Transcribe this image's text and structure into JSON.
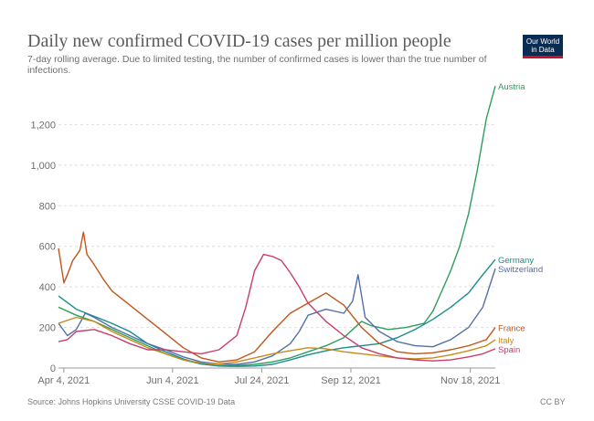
{
  "chart_data": {
    "type": "line",
    "title": "Daily new confirmed COVID-19 cases per million people",
    "subtitle": "7-day rolling average. Due to limited testing, the number of confirmed cases is lower than the true number of infections.",
    "ylim": [
      0,
      1400
    ],
    "xlim": [
      0,
      245
    ],
    "y_ticks": [
      0,
      200,
      400,
      600,
      800,
      1000,
      1200
    ],
    "y_tick_labels": [
      "0",
      "200",
      "400",
      "600",
      "800",
      "1,000",
      "1,200"
    ],
    "x_ticks": [
      {
        "x": 3,
        "label": "Apr 4, 2021"
      },
      {
        "x": 64,
        "label": "Jun 4, 2021"
      },
      {
        "x": 114,
        "label": "Jul 24, 2021"
      },
      {
        "x": 164,
        "label": "Sep 12, 2021"
      },
      {
        "x": 231,
        "label": "Nov 18, 2021"
      }
    ],
    "series": [
      {
        "name": "Austria",
        "color": "#2e9e5b",
        "points": [
          [
            0,
            300
          ],
          [
            10,
            260
          ],
          [
            20,
            230
          ],
          [
            30,
            190
          ],
          [
            40,
            150
          ],
          [
            50,
            110
          ],
          [
            60,
            70
          ],
          [
            70,
            40
          ],
          [
            80,
            20
          ],
          [
            90,
            12
          ],
          [
            100,
            12
          ],
          [
            110,
            18
          ],
          [
            120,
            30
          ],
          [
            130,
            50
          ],
          [
            140,
            80
          ],
          [
            150,
            110
          ],
          [
            160,
            150
          ],
          [
            165,
            190
          ],
          [
            170,
            230
          ],
          [
            175,
            210
          ],
          [
            185,
            190
          ],
          [
            195,
            200
          ],
          [
            205,
            220
          ],
          [
            210,
            280
          ],
          [
            215,
            380
          ],
          [
            220,
            480
          ],
          [
            225,
            600
          ],
          [
            230,
            760
          ],
          [
            235,
            980
          ],
          [
            240,
            1230
          ],
          [
            245,
            1390
          ]
        ]
      },
      {
        "name": "Germany",
        "color": "#1a8c8c",
        "points": [
          [
            0,
            355
          ],
          [
            10,
            290
          ],
          [
            20,
            255
          ],
          [
            30,
            220
          ],
          [
            40,
            180
          ],
          [
            50,
            120
          ],
          [
            60,
            80
          ],
          [
            70,
            45
          ],
          [
            80,
            20
          ],
          [
            90,
            10
          ],
          [
            100,
            8
          ],
          [
            110,
            10
          ],
          [
            120,
            18
          ],
          [
            130,
            40
          ],
          [
            140,
            65
          ],
          [
            150,
            85
          ],
          [
            160,
            100
          ],
          [
            170,
            110
          ],
          [
            180,
            120
          ],
          [
            190,
            150
          ],
          [
            200,
            190
          ],
          [
            210,
            240
          ],
          [
            220,
            300
          ],
          [
            230,
            370
          ],
          [
            238,
            460
          ],
          [
            245,
            535
          ]
        ]
      },
      {
        "name": "Switzerland",
        "color": "#5470a8",
        "points": [
          [
            0,
            220
          ],
          [
            5,
            160
          ],
          [
            10,
            190
          ],
          [
            15,
            270
          ],
          [
            20,
            250
          ],
          [
            30,
            200
          ],
          [
            40,
            160
          ],
          [
            50,
            120
          ],
          [
            60,
            90
          ],
          [
            70,
            55
          ],
          [
            80,
            30
          ],
          [
            90,
            20
          ],
          [
            100,
            18
          ],
          [
            110,
            30
          ],
          [
            120,
            60
          ],
          [
            130,
            120
          ],
          [
            135,
            180
          ],
          [
            140,
            260
          ],
          [
            150,
            290
          ],
          [
            160,
            270
          ],
          [
            165,
            330
          ],
          [
            168,
            460
          ],
          [
            172,
            250
          ],
          [
            180,
            180
          ],
          [
            190,
            130
          ],
          [
            200,
            110
          ],
          [
            210,
            105
          ],
          [
            220,
            140
          ],
          [
            230,
            200
          ],
          [
            238,
            300
          ],
          [
            245,
            490
          ]
        ]
      },
      {
        "name": "France",
        "color": "#c0561a",
        "points": [
          [
            0,
            590
          ],
          [
            3,
            420
          ],
          [
            5,
            460
          ],
          [
            8,
            530
          ],
          [
            12,
            580
          ],
          [
            14,
            670
          ],
          [
            16,
            560
          ],
          [
            20,
            510
          ],
          [
            25,
            440
          ],
          [
            30,
            380
          ],
          [
            40,
            310
          ],
          [
            50,
            240
          ],
          [
            60,
            170
          ],
          [
            70,
            100
          ],
          [
            80,
            50
          ],
          [
            90,
            30
          ],
          [
            100,
            40
          ],
          [
            110,
            80
          ],
          [
            120,
            180
          ],
          [
            130,
            270
          ],
          [
            140,
            320
          ],
          [
            150,
            370
          ],
          [
            160,
            310
          ],
          [
            170,
            200
          ],
          [
            180,
            120
          ],
          [
            190,
            80
          ],
          [
            200,
            70
          ],
          [
            210,
            75
          ],
          [
            220,
            90
          ],
          [
            230,
            110
          ],
          [
            240,
            140
          ],
          [
            245,
            200
          ]
        ]
      },
      {
        "name": "Italy",
        "color": "#c98a1a",
        "points": [
          [
            0,
            220
          ],
          [
            10,
            250
          ],
          [
            20,
            230
          ],
          [
            30,
            180
          ],
          [
            40,
            140
          ],
          [
            50,
            100
          ],
          [
            60,
            70
          ],
          [
            70,
            40
          ],
          [
            80,
            25
          ],
          [
            90,
            20
          ],
          [
            100,
            30
          ],
          [
            110,
            50
          ],
          [
            120,
            70
          ],
          [
            130,
            85
          ],
          [
            140,
            100
          ],
          [
            150,
            95
          ],
          [
            160,
            80
          ],
          [
            170,
            70
          ],
          [
            180,
            60
          ],
          [
            190,
            50
          ],
          [
            200,
            45
          ],
          [
            210,
            50
          ],
          [
            220,
            65
          ],
          [
            230,
            85
          ],
          [
            240,
            110
          ],
          [
            245,
            140
          ]
        ]
      },
      {
        "name": "Spain",
        "color": "#c93c6e",
        "points": [
          [
            0,
            130
          ],
          [
            5,
            140
          ],
          [
            10,
            180
          ],
          [
            20,
            190
          ],
          [
            30,
            160
          ],
          [
            40,
            120
          ],
          [
            50,
            90
          ],
          [
            60,
            90
          ],
          [
            70,
            80
          ],
          [
            80,
            70
          ],
          [
            90,
            90
          ],
          [
            100,
            160
          ],
          [
            105,
            300
          ],
          [
            110,
            480
          ],
          [
            115,
            560
          ],
          [
            120,
            550
          ],
          [
            125,
            530
          ],
          [
            130,
            470
          ],
          [
            135,
            400
          ],
          [
            140,
            320
          ],
          [
            150,
            230
          ],
          [
            160,
            160
          ],
          [
            170,
            100
          ],
          [
            180,
            70
          ],
          [
            190,
            50
          ],
          [
            200,
            40
          ],
          [
            210,
            35
          ],
          [
            220,
            40
          ],
          [
            230,
            55
          ],
          [
            238,
            70
          ],
          [
            245,
            95
          ]
        ]
      }
    ],
    "source": "Source: Johns Hopkins University CSSE COVID-19 Data",
    "license": "CC BY"
  },
  "logo": {
    "line1": "Our World",
    "line2": "in Data"
  }
}
